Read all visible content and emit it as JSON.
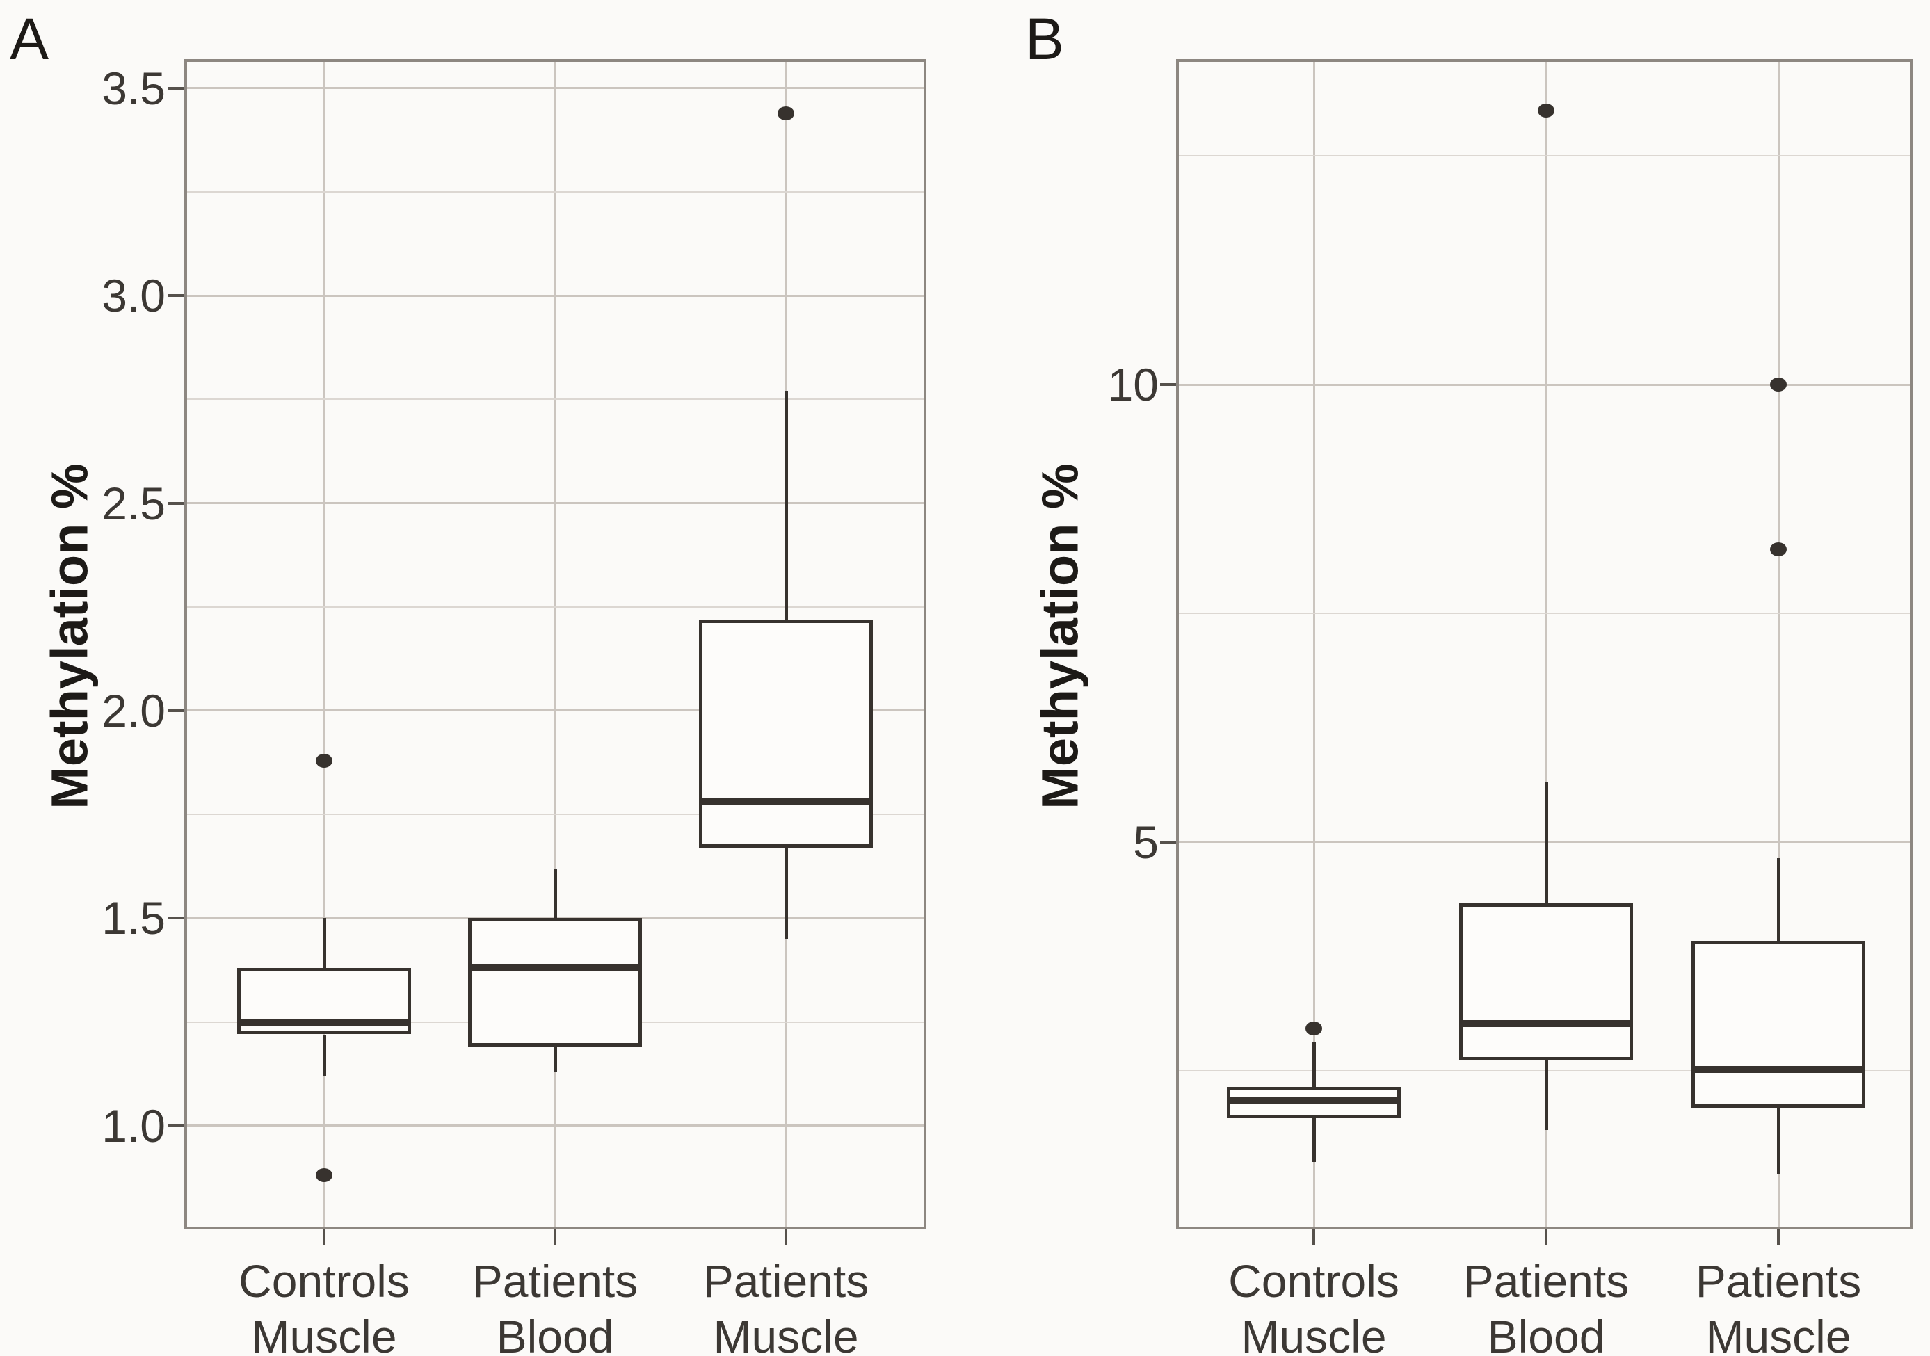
{
  "figure_title": "",
  "colors": {
    "background": "#fbfaf8",
    "box_stroke": "#37322e",
    "median_stroke": "#37322e",
    "outlier_fill": "#37322e",
    "grid_major": "#cbc5bf",
    "grid_minor": "#dcd7d2",
    "panel_border": "#8d8781",
    "tick_mark": "#56514c",
    "text": "#3c3834"
  },
  "chart_data": [
    {
      "type": "boxplot",
      "panel_label": "A",
      "ylabel": "Methylation %",
      "xlabel": "",
      "grid": true,
      "legend": false,
      "categories": [
        "Controls Muscle",
        "Patients Blood",
        "Patients Muscle"
      ],
      "category_lines": [
        [
          "Controls",
          "Muscle"
        ],
        [
          "Patients",
          "Blood"
        ],
        [
          "Patients",
          "Muscle"
        ]
      ],
      "ylim": [
        0.75,
        3.57
      ],
      "y_ticks": [
        {
          "v": 1.0,
          "label": "1.0"
        },
        {
          "v": 1.5,
          "label": "1.5"
        },
        {
          "v": 2.0,
          "label": "2.0"
        },
        {
          "v": 2.5,
          "label": "2.5"
        },
        {
          "v": 3.0,
          "label": "3.0"
        },
        {
          "v": 3.5,
          "label": "3.5"
        }
      ],
      "y_minor_gridlines": [
        1.25,
        1.75,
        2.25,
        2.75,
        3.25
      ],
      "boxes": [
        {
          "category": "Controls Muscle",
          "whisker_low": 1.12,
          "q1": 1.22,
          "median": 1.25,
          "q3": 1.38,
          "whisker_high": 1.5,
          "outliers": [
            1.88,
            0.88
          ]
        },
        {
          "category": "Patients Blood",
          "whisker_low": 1.13,
          "q1": 1.19,
          "median": 1.38,
          "q3": 1.5,
          "whisker_high": 1.62,
          "outliers": []
        },
        {
          "category": "Patients Muscle",
          "whisker_low": 1.45,
          "q1": 1.67,
          "median": 1.78,
          "q3": 2.22,
          "whisker_high": 2.77,
          "outliers": [
            3.44
          ]
        }
      ]
    },
    {
      "type": "boxplot",
      "panel_label": "B",
      "ylabel": "Methylation %",
      "xlabel": "",
      "grid": true,
      "legend": false,
      "categories": [
        "Controls Muscle",
        "Patients Blood",
        "Patients Muscle"
      ],
      "category_lines": [
        [
          "Controls",
          "Muscle"
        ],
        [
          "Patients",
          "Blood"
        ],
        [
          "Patients",
          "Muscle"
        ]
      ],
      "ylim": [
        0.76,
        13.56
      ],
      "y_ticks": [
        {
          "v": 5,
          "label": "5"
        },
        {
          "v": 10,
          "label": "10"
        }
      ],
      "y_minor_gridlines": [
        2.5,
        7.5,
        12.5
      ],
      "boxes": [
        {
          "category": "Controls Muscle",
          "whisker_low": 1.5,
          "q1": 1.98,
          "median": 2.17,
          "q3": 2.32,
          "whisker_high": 2.81,
          "outliers": [
            2.96
          ]
        },
        {
          "category": "Patients Blood",
          "whisker_low": 1.85,
          "q1": 2.61,
          "median": 3.01,
          "q3": 4.33,
          "whisker_high": 5.65,
          "outliers": [
            13.0
          ]
        },
        {
          "category": "Patients Muscle",
          "whisker_low": 1.37,
          "q1": 2.09,
          "median": 2.51,
          "q3": 3.92,
          "whisker_high": 4.82,
          "outliers": [
            10.0,
            8.2
          ]
        }
      ]
    }
  ]
}
